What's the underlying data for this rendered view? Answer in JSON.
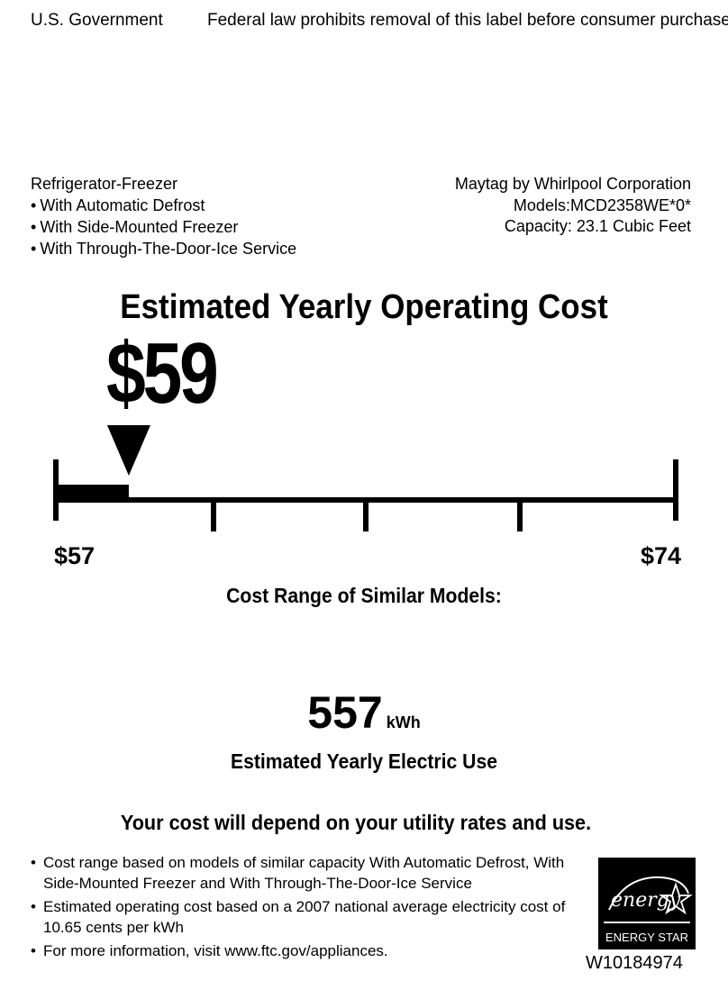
{
  "header": {
    "left": "U.S. Government",
    "right": "Federal law prohibits removal of this label before consumer purchase."
  },
  "product": {
    "type": "Refrigerator-Freezer",
    "features": [
      "With Automatic Defrost",
      "With Side-Mounted Freezer",
      "With Through-The-Door-Ice Service"
    ]
  },
  "manufacturer": {
    "name": "Maytag by Whirlpool Corporation",
    "models": "Models:MCD2358WE*0*",
    "capacity": "Capacity: 23.1 Cubic Feet"
  },
  "cost": {
    "title": "Estimated Yearly Operating Cost",
    "value": "$59",
    "value_number": 59
  },
  "range": {
    "min_label": "$57",
    "max_label": "$74",
    "min": 57,
    "max": 74,
    "caption": "Cost Range of Similar Models:"
  },
  "energy_use": {
    "value": "557",
    "unit": "kWh",
    "caption": "Estimated Yearly Electric Use"
  },
  "depend_note": "Your cost will depend on your utility rates and use.",
  "notes": [
    "Cost range based on models of similar capacity With Automatic Defrost, With Side-Mounted Freezer and With Through-The-Door-Ice Service",
    "Estimated operating cost based on a 2007 national average electricity cost of 10.65 cents per kWh",
    "For more information, visit www.ftc.gov/appliances."
  ],
  "energy_star": {
    "label": "ENERGY STAR",
    "script": "energy"
  },
  "label_code": "W10184974"
}
